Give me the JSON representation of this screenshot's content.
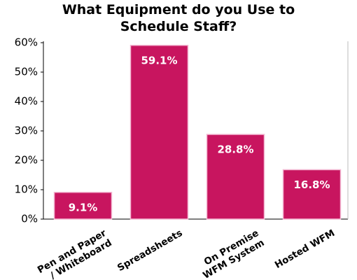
{
  "chart_data": {
    "type": "bar",
    "title": "What Equipment do you Use to\nSchedule Staff?",
    "categories": [
      "Pen and Paper\n/ Whiteboard",
      "Spreadsheets",
      "On Premise\nWFM System",
      "Hosted WFM"
    ],
    "values": [
      9.1,
      59.1,
      28.8,
      16.8
    ],
    "value_labels": [
      "9.1%",
      "59.1%",
      "28.8%",
      "16.8%"
    ],
    "color": "#c8155f",
    "ylim": [
      0,
      60
    ],
    "yticks": [
      {
        "value": 0,
        "label": "0%"
      },
      {
        "value": 10,
        "label": "10%"
      },
      {
        "value": 20,
        "label": "20%"
      },
      {
        "value": 30,
        "label": "30%"
      },
      {
        "value": 40,
        "label": "40%"
      },
      {
        "value": 50,
        "label": "50%"
      },
      {
        "value": 60,
        "label": "60%"
      }
    ],
    "grid": false
  }
}
